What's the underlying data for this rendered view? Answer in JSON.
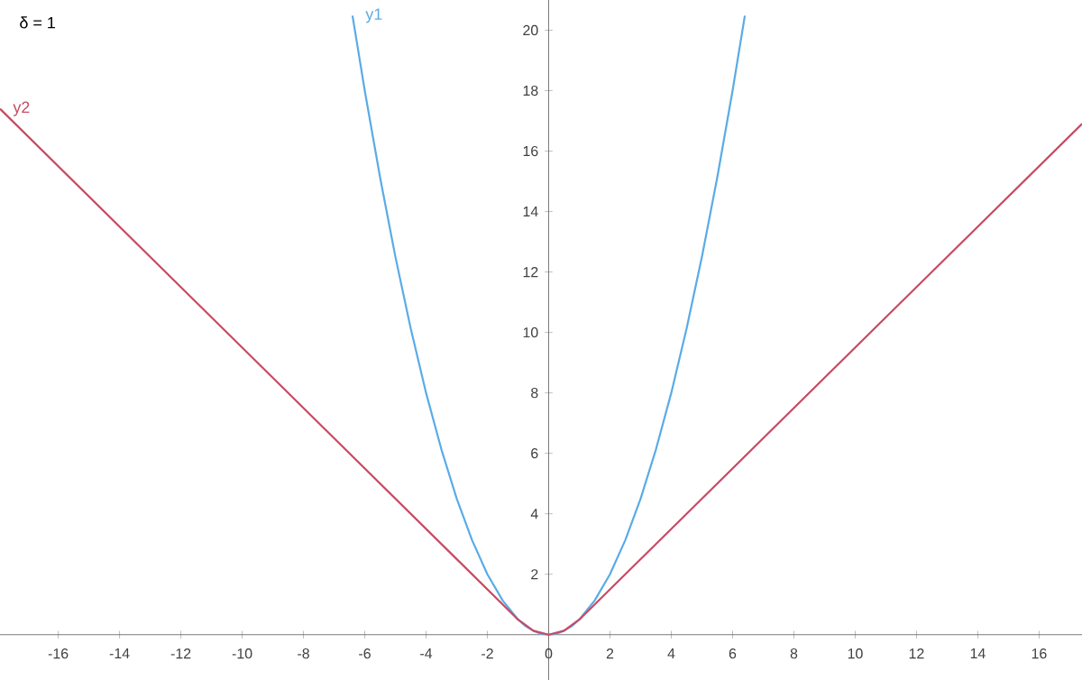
{
  "chart_data": {
    "type": "line",
    "xlim": [
      -17.9,
      17.4
    ],
    "ylim": [
      -1.5,
      21
    ],
    "xticks": [
      -16,
      -14,
      -12,
      -10,
      -8,
      -6,
      -4,
      -2,
      0,
      2,
      4,
      6,
      8,
      10,
      12,
      14,
      16
    ],
    "yticks": [
      2,
      4,
      6,
      8,
      10,
      12,
      14,
      16,
      18,
      20
    ],
    "annotations": [
      "δ = 1"
    ],
    "grid": false,
    "legend": false,
    "marker": "none",
    "line_style": "solid",
    "series": [
      {
        "name": "y1",
        "color": "#5aabe6",
        "x": [
          -6.4,
          -6,
          -5.5,
          -5,
          -4.5,
          -4,
          -3.5,
          -3,
          -2.5,
          -2,
          -1.5,
          -1,
          -0.75,
          -0.5,
          -0.25,
          0,
          0.25,
          0.5,
          0.75,
          1,
          1.5,
          2,
          2.5,
          3,
          3.5,
          4,
          4.5,
          5,
          5.5,
          6,
          6.4
        ],
        "values": [
          20.48,
          18,
          15.13,
          12.5,
          10.13,
          8,
          6.13,
          4.5,
          3.13,
          2,
          1.13,
          0.5,
          0.28,
          0.13,
          0.03,
          0,
          0.03,
          0.13,
          0.28,
          0.5,
          1.13,
          2,
          3.13,
          4.5,
          6.13,
          8,
          10.13,
          12.5,
          15.13,
          18,
          20.48
        ]
      },
      {
        "name": "y2",
        "color": "#c84a64",
        "x": [
          -17.9,
          -1,
          -0.5,
          0,
          0.5,
          1,
          17.4
        ],
        "values": [
          17.4,
          0.5,
          0.13,
          0,
          0.13,
          0.5,
          16.9
        ]
      }
    ]
  }
}
